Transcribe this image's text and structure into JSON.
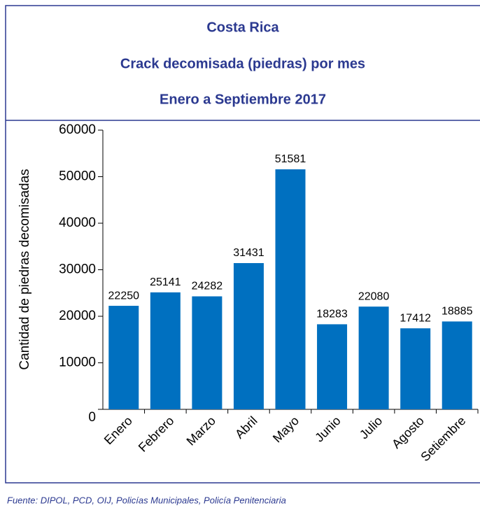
{
  "chart_data": {
    "type": "bar",
    "title": "Costa Rica",
    "subtitle": "Crack decomisada (piedras) por mes",
    "subtitle2": "Enero a Septiembre 2017",
    "y_label": "Cantidad de piedras decomisadas",
    "source": "Fuente: DIPOL, PCD, OIJ, Policías Municipales, Policía Penitenciaria",
    "categories": [
      "Enero",
      "Febrero",
      "Marzo",
      "Abril",
      "Mayo",
      "Junio",
      "Julio",
      "Agosto",
      "Setiembre"
    ],
    "values": [
      22250,
      25141,
      24282,
      31431,
      51581,
      18283,
      22080,
      17412,
      18885
    ],
    "color": "#0070c0",
    "ylim": [
      0,
      60000
    ],
    "yticks": [
      0,
      10000,
      20000,
      30000,
      40000,
      50000,
      60000
    ],
    "grid": false
  }
}
